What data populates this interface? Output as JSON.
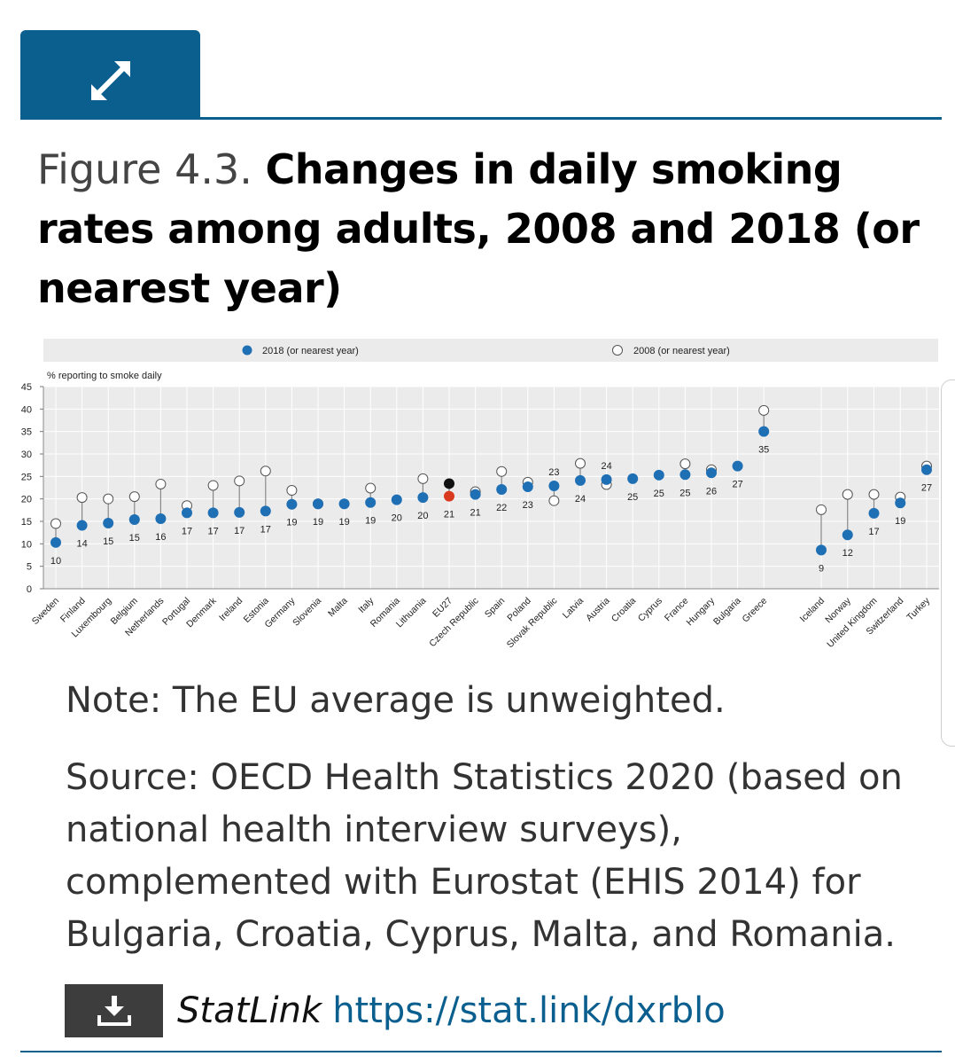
{
  "figure": {
    "number": "Figure 4.3.",
    "title": "Changes in daily smoking rates among adults, 2008 and 2018 (or nearest year)"
  },
  "icons": {
    "expand": "expand-arrows-icon",
    "download": "download-icon"
  },
  "colors": {
    "brand": "#0b5f8f",
    "series_2018": "#1f6fb4",
    "eu_2018": "#d9391c",
    "eu_2008": "#111111",
    "plot_bg": "#ebebeb"
  },
  "chart_data": {
    "type": "scatter",
    "subtype": "dumbbell",
    "ylabel": "% reporting to smoke daily",
    "ylim": [
      0,
      45
    ],
    "yticks": [
      0,
      5,
      10,
      15,
      20,
      25,
      30,
      35,
      40,
      45
    ],
    "grid": true,
    "legend": [
      {
        "name": "2018 (or nearest year)",
        "marker": "filled"
      },
      {
        "name": "2008 (or nearest year)",
        "marker": "hollow"
      }
    ],
    "legend_position": "top",
    "highlight": "EU27",
    "groups": [
      [
        "Sweden",
        "Finland",
        "Luxembourg",
        "Belgium",
        "Netherlands",
        "Portugal",
        "Denmark",
        "Ireland",
        "Estonia",
        "Germany",
        "Slovenia",
        "Malta",
        "Italy",
        "Romania",
        "Lithuania",
        "EU27",
        "Czech Republic",
        "Spain",
        "Poland",
        "Slovak Republic",
        "Latvia",
        "Austria",
        "Croatia",
        "Cyprus",
        "France",
        "Hungary",
        "Bulgaria",
        "Greece"
      ],
      [
        "Iceland",
        "Norway",
        "United Kingdom",
        "Switzerland",
        "Turkey"
      ]
    ],
    "categories": [
      "Sweden",
      "Finland",
      "Luxembourg",
      "Belgium",
      "Netherlands",
      "Portugal",
      "Denmark",
      "Ireland",
      "Estonia",
      "Germany",
      "Slovenia",
      "Malta",
      "Italy",
      "Romania",
      "Lithuania",
      "EU27",
      "Czech Republic",
      "Spain",
      "Poland",
      "Slovak Republic",
      "Latvia",
      "Austria",
      "Croatia",
      "Cyprus",
      "France",
      "Hungary",
      "Bulgaria",
      "Greece",
      "Iceland",
      "Norway",
      "United Kingdom",
      "Switzerland",
      "Turkey"
    ],
    "series": [
      {
        "name": "2018 (or nearest year)",
        "values": [
          10.3,
          14.1,
          14.6,
          15.4,
          15.6,
          16.9,
          16.9,
          17.0,
          17.3,
          18.8,
          18.9,
          18.9,
          19.2,
          19.8,
          20.3,
          20.6,
          21.0,
          22.1,
          22.7,
          22.9,
          24.1,
          24.3,
          24.5,
          25.3,
          25.4,
          25.8,
          27.3,
          35.0,
          8.6,
          12.0,
          16.8,
          19.1,
          26.5
        ],
        "labels": [
          "10",
          "14",
          "15",
          "15",
          "16",
          "17",
          "17",
          "17",
          "17",
          "19",
          "19",
          "19",
          "19",
          "20",
          "20",
          "21",
          "21",
          "22",
          "23",
          "23",
          "24",
          "24",
          "25",
          "25",
          "25",
          "26",
          "27",
          "35",
          "9",
          "12",
          "17",
          "19",
          "27"
        ]
      },
      {
        "name": "2008 (or nearest year)",
        "values": [
          14.5,
          20.3,
          20.0,
          20.5,
          23.3,
          18.5,
          23.0,
          24.0,
          26.2,
          21.9,
          18.9,
          null,
          22.4,
          null,
          24.5,
          23.4,
          21.6,
          26.1,
          23.7,
          19.6,
          27.9,
          23.2,
          null,
          null,
          27.8,
          26.5,
          null,
          39.7,
          17.6,
          21.0,
          21.0,
          20.4,
          27.3
        ],
        "labels": [
          "",
          "",
          "",
          "",
          "",
          "",
          "",
          "",
          "",
          "",
          "",
          "",
          "",
          "",
          "",
          "",
          "",
          "",
          "",
          "",
          "",
          "",
          "",
          "",
          "",
          "",
          "",
          "",
          "",
          "",
          "",
          "",
          ""
        ]
      }
    ],
    "labels_above_point": [
      "Slovak Republic",
      "Austria"
    ]
  },
  "note": "Note: The EU average is unweighted.",
  "source": "Source: OECD Health Statistics 2020 (based on national health interview surveys), complemented with Eurostat (EHIS 2014) for Bulgaria, Croatia, Cyprus, Malta, and Romania.",
  "statlink": {
    "label": "StatLink",
    "url": "https://stat.link/dxrblo"
  }
}
